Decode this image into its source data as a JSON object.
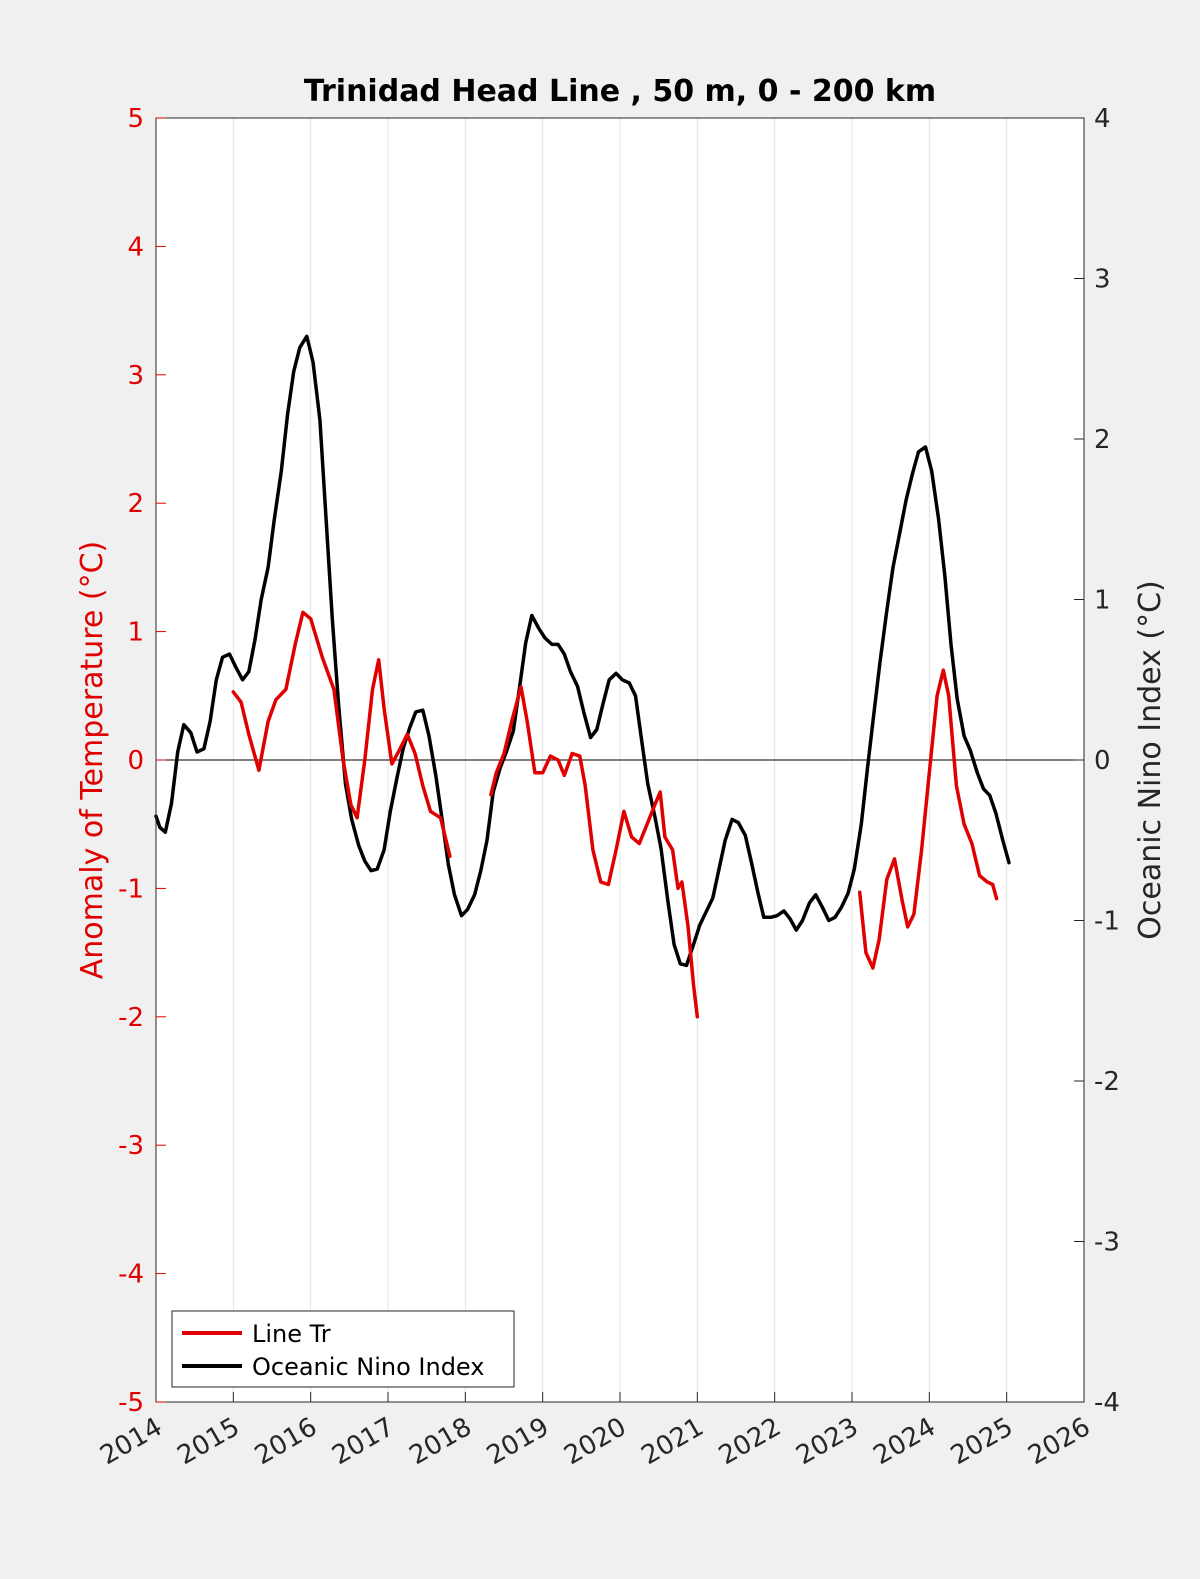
{
  "chart_data": {
    "type": "line",
    "title": "Trinidad Head Line , 50 m, 0 - 200 km",
    "xlabel": "",
    "ylabel_left": "Anomaly of Temperature (°C)",
    "ylabel_right": "Oceanic Nino Index (°C)",
    "xlim": [
      2014,
      2026
    ],
    "ylim_left": [
      -5,
      5
    ],
    "ylim_right": [
      -4,
      4
    ],
    "x_ticks": [
      "2014",
      "2015",
      "2016",
      "2017",
      "2018",
      "2019",
      "2020",
      "2021",
      "2022",
      "2023",
      "2024",
      "2025",
      "2026"
    ],
    "y_ticks_left": [
      "5",
      "4",
      "3",
      "2",
      "1",
      "0",
      "-1",
      "-2",
      "-3",
      "-4",
      "-5"
    ],
    "y_ticks_right": [
      "4",
      "3",
      "2",
      "1",
      "0",
      "-1",
      "-2",
      "-3",
      "-4"
    ],
    "grid": "vertical",
    "zero_line": true,
    "legend_position": "bottom-left",
    "colors": {
      "left_axis": "#e00000",
      "series_red": "#e00000",
      "series_black": "#000000",
      "plot_bg": "#ffffff",
      "figure_bg": "#f0f0f0"
    },
    "series": [
      {
        "name": "Line Tr",
        "axis": "left",
        "color": "#e00000",
        "segments": [
          [
            [
              2015.0,
              0.53
            ],
            [
              2015.1,
              0.45
            ],
            [
              2015.2,
              0.2
            ],
            [
              2015.33,
              -0.08
            ],
            [
              2015.45,
              0.3
            ],
            [
              2015.55,
              0.47
            ],
            [
              2015.68,
              0.55
            ],
            [
              2015.8,
              0.9
            ],
            [
              2015.9,
              1.15
            ],
            [
              2016.0,
              1.1
            ],
            [
              2016.15,
              0.8
            ],
            [
              2016.3,
              0.55
            ],
            [
              2016.42,
              0.0
            ],
            [
              2016.52,
              -0.35
            ],
            [
              2016.6,
              -0.45
            ],
            [
              2016.7,
              0.0
            ],
            [
              2016.8,
              0.55
            ],
            [
              2016.88,
              0.78
            ],
            [
              2016.95,
              0.4
            ],
            [
              2017.05,
              -0.03
            ],
            [
              2017.15,
              0.08
            ],
            [
              2017.25,
              0.2
            ],
            [
              2017.35,
              0.05
            ],
            [
              2017.45,
              -0.2
            ],
            [
              2017.55,
              -0.4
            ],
            [
              2017.68,
              -0.45
            ],
            [
              2017.8,
              -0.75
            ]
          ],
          [
            [
              2018.33,
              -0.27
            ],
            [
              2018.4,
              -0.1
            ],
            [
              2018.5,
              0.05
            ],
            [
              2018.6,
              0.3
            ],
            [
              2018.72,
              0.57
            ],
            [
              2018.8,
              0.3
            ],
            [
              2018.9,
              -0.1
            ],
            [
              2019.0,
              -0.1
            ],
            [
              2019.1,
              0.03
            ],
            [
              2019.2,
              0.0
            ],
            [
              2019.28,
              -0.12
            ],
            [
              2019.38,
              0.05
            ],
            [
              2019.48,
              0.03
            ],
            [
              2019.55,
              -0.2
            ],
            [
              2019.65,
              -0.7
            ],
            [
              2019.75,
              -0.95
            ],
            [
              2019.85,
              -0.97
            ],
            [
              2019.95,
              -0.7
            ],
            [
              2020.05,
              -0.4
            ],
            [
              2020.15,
              -0.6
            ],
            [
              2020.25,
              -0.65
            ],
            [
              2020.35,
              -0.5
            ],
            [
              2020.45,
              -0.35
            ],
            [
              2020.52,
              -0.25
            ],
            [
              2020.58,
              -0.6
            ],
            [
              2020.68,
              -0.7
            ],
            [
              2020.75,
              -1.0
            ],
            [
              2020.8,
              -0.95
            ],
            [
              2020.88,
              -1.3
            ],
            [
              2020.95,
              -1.75
            ],
            [
              2021.0,
              -2.0
            ]
          ],
          [
            [
              2023.1,
              -1.03
            ],
            [
              2023.18,
              -1.5
            ],
            [
              2023.27,
              -1.62
            ],
            [
              2023.35,
              -1.4
            ],
            [
              2023.45,
              -0.93
            ],
            [
              2023.55,
              -0.77
            ],
            [
              2023.65,
              -1.1
            ],
            [
              2023.72,
              -1.3
            ],
            [
              2023.8,
              -1.2
            ],
            [
              2023.9,
              -0.7
            ],
            [
              2024.0,
              -0.1
            ],
            [
              2024.1,
              0.5
            ],
            [
              2024.18,
              0.7
            ],
            [
              2024.25,
              0.5
            ],
            [
              2024.35,
              -0.2
            ],
            [
              2024.45,
              -0.5
            ],
            [
              2024.55,
              -0.65
            ],
            [
              2024.65,
              -0.9
            ],
            [
              2024.75,
              -0.95
            ],
            [
              2024.82,
              -0.97
            ],
            [
              2024.87,
              -1.08
            ]
          ]
        ]
      },
      {
        "name": "Oceanic Nino Index",
        "axis": "right",
        "color": "#000000",
        "segments": [
          [
            [
              2014.0,
              -0.35
            ],
            [
              2014.05,
              -0.42
            ],
            [
              2014.12,
              -0.45
            ],
            [
              2014.2,
              -0.27
            ],
            [
              2014.28,
              0.05
            ],
            [
              2014.36,
              0.22
            ],
            [
              2014.45,
              0.17
            ],
            [
              2014.53,
              0.05
            ],
            [
              2014.62,
              0.07
            ],
            [
              2014.7,
              0.24
            ],
            [
              2014.78,
              0.5
            ],
            [
              2014.86,
              0.64
            ],
            [
              2014.95,
              0.66
            ],
            [
              2015.03,
              0.58
            ],
            [
              2015.12,
              0.5
            ],
            [
              2015.2,
              0.55
            ],
            [
              2015.28,
              0.75
            ],
            [
              2015.36,
              1.0
            ],
            [
              2015.45,
              1.2
            ],
            [
              2015.53,
              1.5
            ],
            [
              2015.62,
              1.8
            ],
            [
              2015.7,
              2.15
            ],
            [
              2015.78,
              2.42
            ],
            [
              2015.86,
              2.57
            ],
            [
              2015.95,
              2.64
            ],
            [
              2016.03,
              2.48
            ],
            [
              2016.12,
              2.12
            ],
            [
              2016.2,
              1.5
            ],
            [
              2016.28,
              0.88
            ],
            [
              2016.36,
              0.35
            ],
            [
              2016.45,
              -0.15
            ],
            [
              2016.53,
              -0.37
            ],
            [
              2016.62,
              -0.53
            ],
            [
              2016.7,
              -0.63
            ],
            [
              2016.78,
              -0.69
            ],
            [
              2016.86,
              -0.68
            ],
            [
              2016.95,
              -0.56
            ],
            [
              2017.03,
              -0.32
            ],
            [
              2017.12,
              -0.1
            ],
            [
              2017.2,
              0.08
            ],
            [
              2017.28,
              0.2
            ],
            [
              2017.36,
              0.3
            ],
            [
              2017.45,
              0.31
            ],
            [
              2017.53,
              0.15
            ],
            [
              2017.62,
              -0.1
            ],
            [
              2017.7,
              -0.37
            ],
            [
              2017.78,
              -0.65
            ],
            [
              2017.86,
              -0.84
            ],
            [
              2017.95,
              -0.97
            ],
            [
              2018.03,
              -0.93
            ],
            [
              2018.12,
              -0.84
            ],
            [
              2018.2,
              -0.69
            ],
            [
              2018.28,
              -0.5
            ],
            [
              2018.36,
              -0.2
            ],
            [
              2018.45,
              -0.05
            ],
            [
              2018.53,
              0.05
            ],
            [
              2018.62,
              0.18
            ],
            [
              2018.7,
              0.45
            ],
            [
              2018.78,
              0.73
            ],
            [
              2018.86,
              0.9
            ],
            [
              2018.95,
              0.82
            ],
            [
              2019.03,
              0.76
            ],
            [
              2019.12,
              0.72
            ],
            [
              2019.2,
              0.72
            ],
            [
              2019.28,
              0.66
            ],
            [
              2019.36,
              0.55
            ],
            [
              2019.45,
              0.46
            ],
            [
              2019.53,
              0.3
            ],
            [
              2019.62,
              0.14
            ],
            [
              2019.7,
              0.19
            ],
            [
              2019.78,
              0.35
            ],
            [
              2019.86,
              0.5
            ],
            [
              2019.95,
              0.54
            ],
            [
              2020.03,
              0.5
            ],
            [
              2020.12,
              0.48
            ],
            [
              2020.2,
              0.4
            ],
            [
              2020.28,
              0.12
            ],
            [
              2020.36,
              -0.15
            ],
            [
              2020.45,
              -0.35
            ],
            [
              2020.53,
              -0.55
            ],
            [
              2020.62,
              -0.88
            ],
            [
              2020.7,
              -1.15
            ],
            [
              2020.78,
              -1.27
            ],
            [
              2020.86,
              -1.28
            ],
            [
              2020.95,
              -1.15
            ],
            [
              2021.03,
              -1.03
            ],
            [
              2021.12,
              -0.94
            ],
            [
              2021.2,
              -0.86
            ],
            [
              2021.28,
              -0.68
            ],
            [
              2021.36,
              -0.5
            ],
            [
              2021.45,
              -0.37
            ],
            [
              2021.53,
              -0.39
            ],
            [
              2021.62,
              -0.47
            ],
            [
              2021.7,
              -0.64
            ],
            [
              2021.78,
              -0.82
            ],
            [
              2021.86,
              -0.98
            ],
            [
              2021.95,
              -0.98
            ],
            [
              2022.03,
              -0.97
            ],
            [
              2022.12,
              -0.94
            ],
            [
              2022.2,
              -0.99
            ],
            [
              2022.28,
              -1.06
            ],
            [
              2022.36,
              -1.0
            ],
            [
              2022.45,
              -0.89
            ],
            [
              2022.53,
              -0.84
            ],
            [
              2022.62,
              -0.92
            ],
            [
              2022.7,
              -1.0
            ],
            [
              2022.78,
              -0.98
            ],
            [
              2022.86,
              -0.92
            ],
            [
              2022.95,
              -0.83
            ],
            [
              2023.03,
              -0.68
            ],
            [
              2023.12,
              -0.4
            ],
            [
              2023.2,
              -0.05
            ],
            [
              2023.28,
              0.28
            ],
            [
              2023.36,
              0.6
            ],
            [
              2023.45,
              0.93
            ],
            [
              2023.53,
              1.2
            ],
            [
              2023.62,
              1.42
            ],
            [
              2023.7,
              1.62
            ],
            [
              2023.78,
              1.78
            ],
            [
              2023.86,
              1.92
            ],
            [
              2023.95,
              1.95
            ],
            [
              2024.03,
              1.8
            ],
            [
              2024.12,
              1.5
            ],
            [
              2024.2,
              1.15
            ],
            [
              2024.28,
              0.72
            ],
            [
              2024.36,
              0.38
            ],
            [
              2024.45,
              0.15
            ],
            [
              2024.53,
              0.06
            ],
            [
              2024.62,
              -0.08
            ],
            [
              2024.7,
              -0.18
            ],
            [
              2024.78,
              -0.22
            ],
            [
              2024.86,
              -0.33
            ],
            [
              2024.95,
              -0.5
            ],
            [
              2025.03,
              -0.64
            ]
          ]
        ]
      }
    ]
  }
}
